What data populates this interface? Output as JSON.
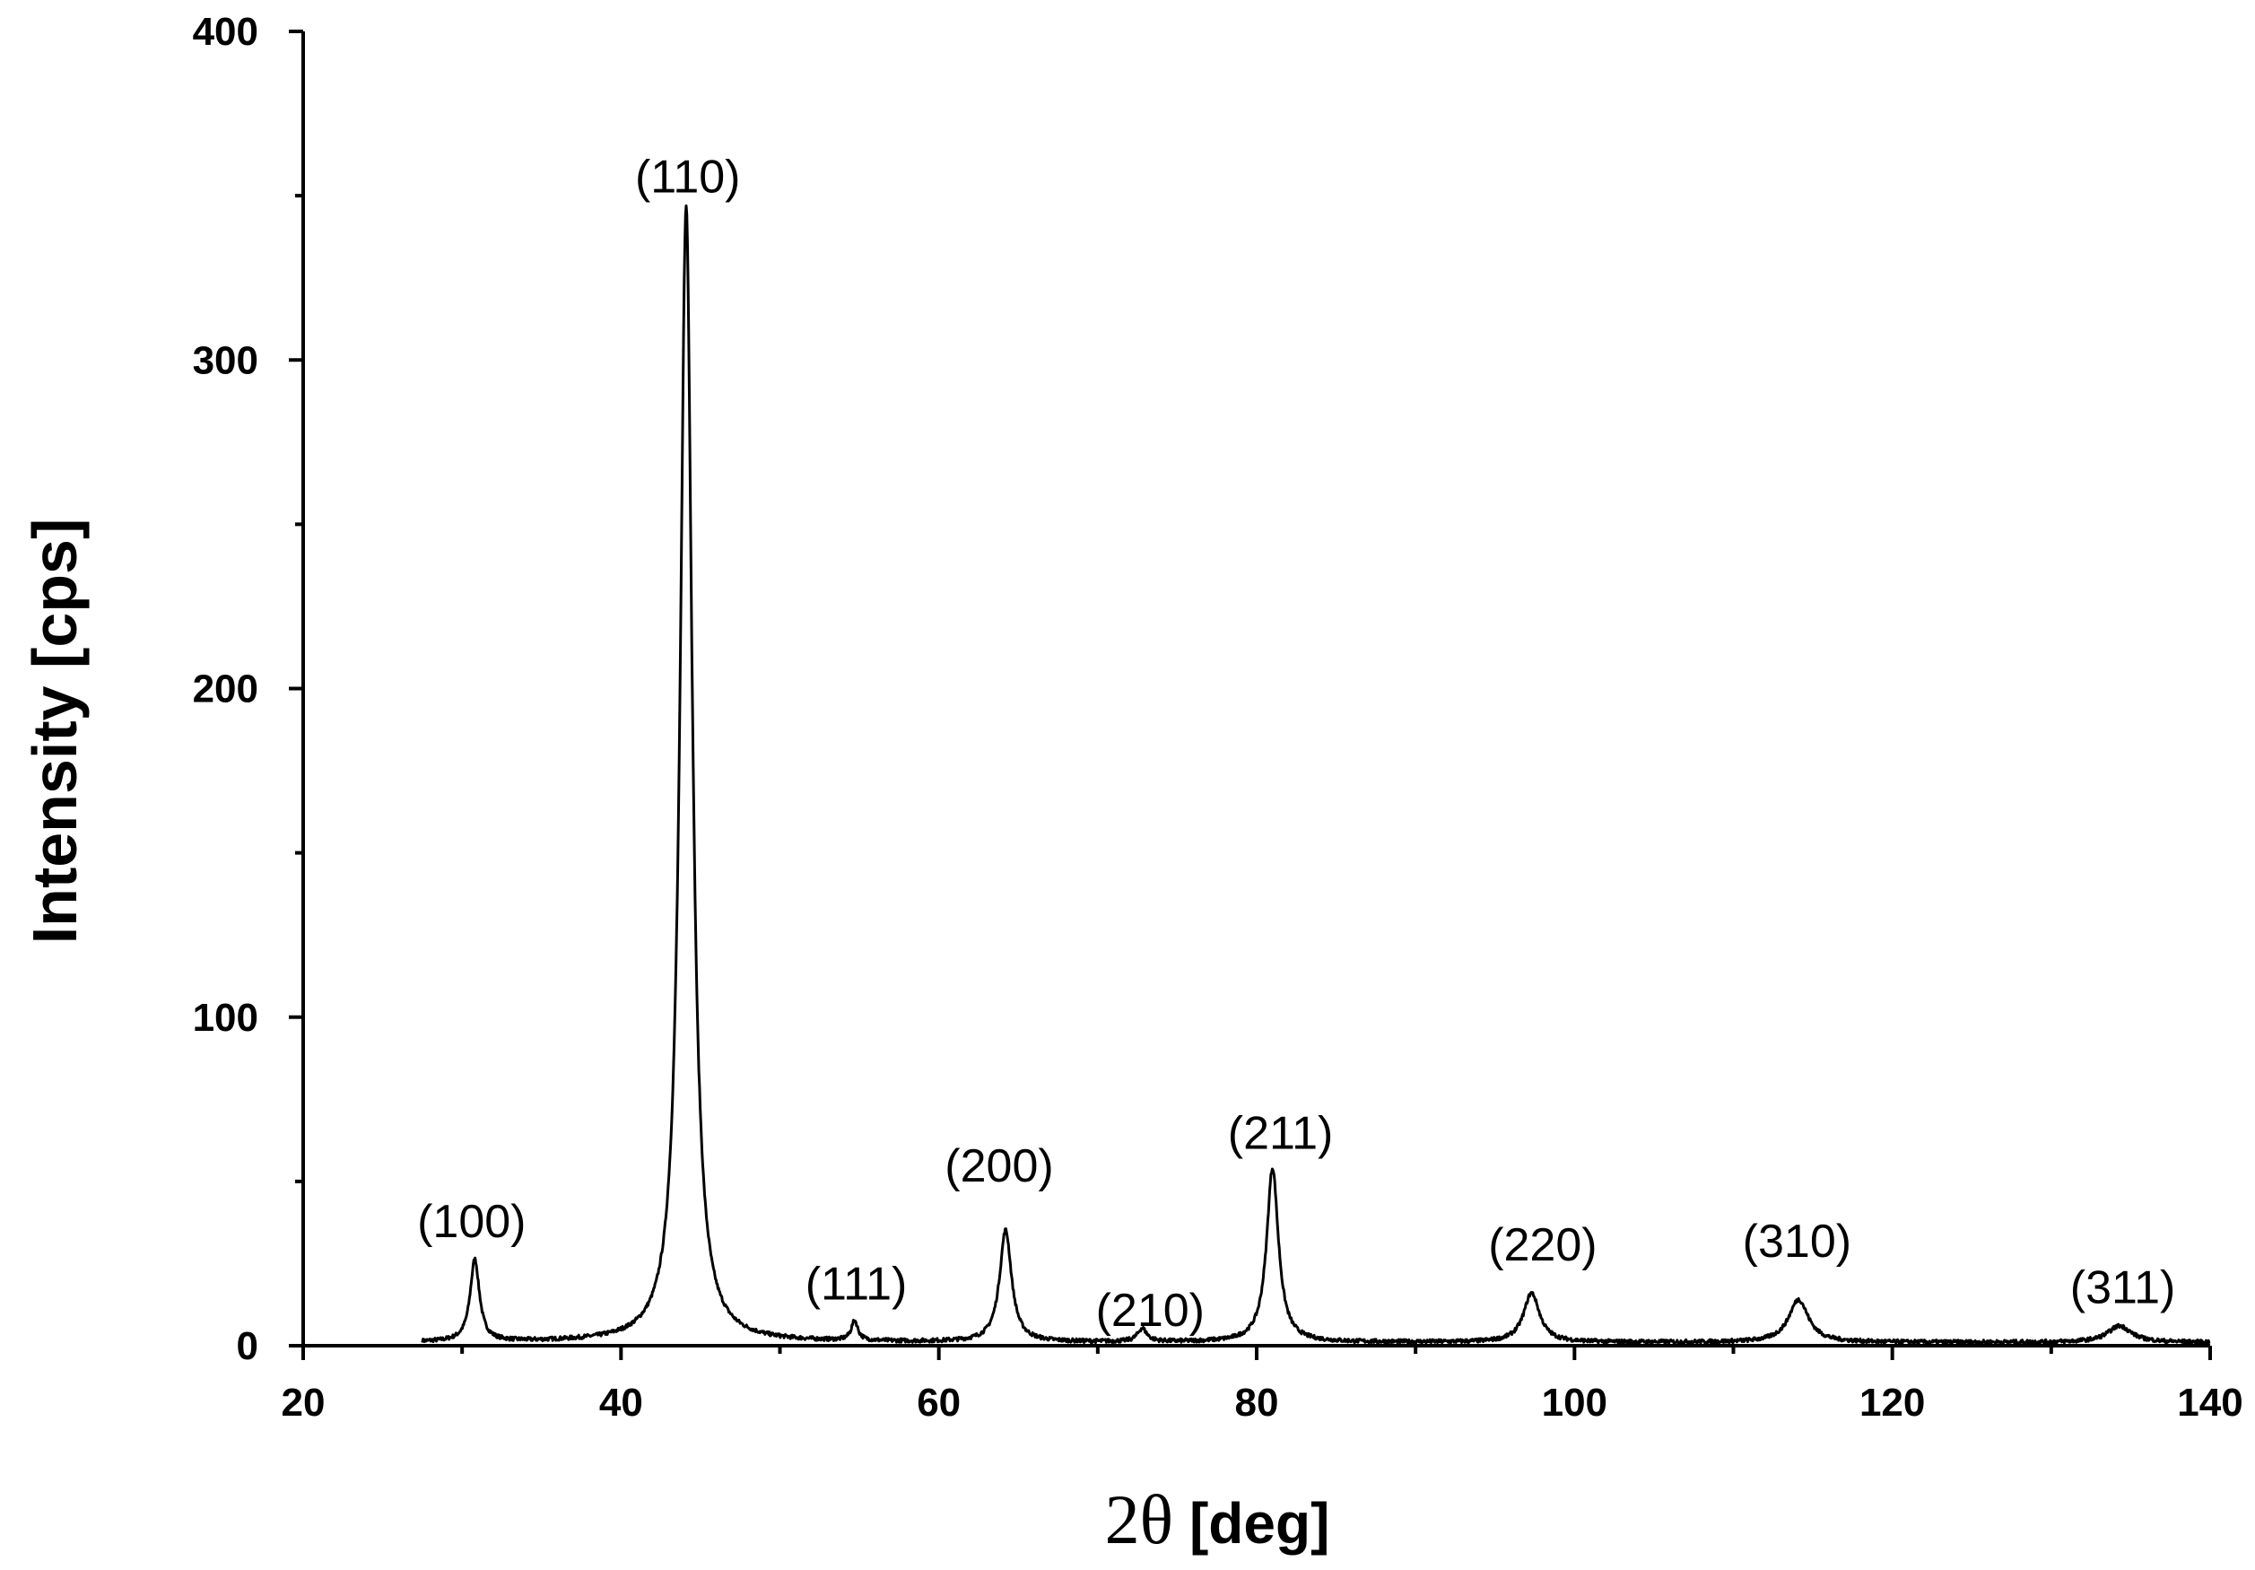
{
  "chart_data": {
    "type": "line",
    "title": "",
    "xlabel_symbol": "2θ",
    "xlabel_unit": "[deg]",
    "ylabel": "Intensity [cps]",
    "xlim": [
      20,
      140
    ],
    "ylim": [
      0,
      400
    ],
    "x_ticks": [
      20,
      40,
      60,
      80,
      100,
      120,
      140
    ],
    "x_tick_labels": [
      "20",
      "40",
      "60",
      "80",
      "100",
      "120",
      "140"
    ],
    "y_ticks": [
      0,
      100,
      200,
      300,
      400
    ],
    "y_tick_labels": [
      "0",
      "100",
      "200",
      "300",
      "400"
    ],
    "grid": false,
    "legend": "none",
    "baseline": 1,
    "peaks": [
      {
        "label": "(100)",
        "x": 30.8,
        "y": 25,
        "width": 0.35
      },
      {
        "label": "(110)",
        "x": 44.1,
        "y": 346,
        "width": 0.45
      },
      {
        "label": "(111)",
        "x": 54.7,
        "y": 6,
        "width": 0.25
      },
      {
        "label": "(200)",
        "x": 64.2,
        "y": 34,
        "width": 0.45
      },
      {
        "label": "(210)",
        "x": 72.8,
        "y": 4,
        "width": 0.35
      },
      {
        "label": "(211)",
        "x": 81.0,
        "y": 53,
        "width": 0.45
      },
      {
        "label": "(220)",
        "x": 97.3,
        "y": 15,
        "width": 0.6
      },
      {
        "label": "(310)",
        "x": 114.1,
        "y": 13,
        "width": 0.75
      },
      {
        "label": "(311)",
        "x": 134.3,
        "y": 5,
        "width": 0.9
      }
    ],
    "peak_labels": [
      {
        "text": "(100)",
        "x": 30.6,
        "y": 33
      },
      {
        "text": "(110)",
        "x": 44.2,
        "y": 351
      },
      {
        "text": "(111)",
        "x": 54.8,
        "y": 14
      },
      {
        "text": "(200)",
        "x": 63.8,
        "y": 50
      },
      {
        "text": "(210)",
        "x": 73.3,
        "y": 6
      },
      {
        "text": "(211)",
        "x": 81.5,
        "y": 60
      },
      {
        "text": "(220)",
        "x": 98.0,
        "y": 26
      },
      {
        "text": "(310)",
        "x": 114.0,
        "y": 27
      },
      {
        "text": "(311)",
        "x": 134.5,
        "y": 13
      }
    ]
  }
}
